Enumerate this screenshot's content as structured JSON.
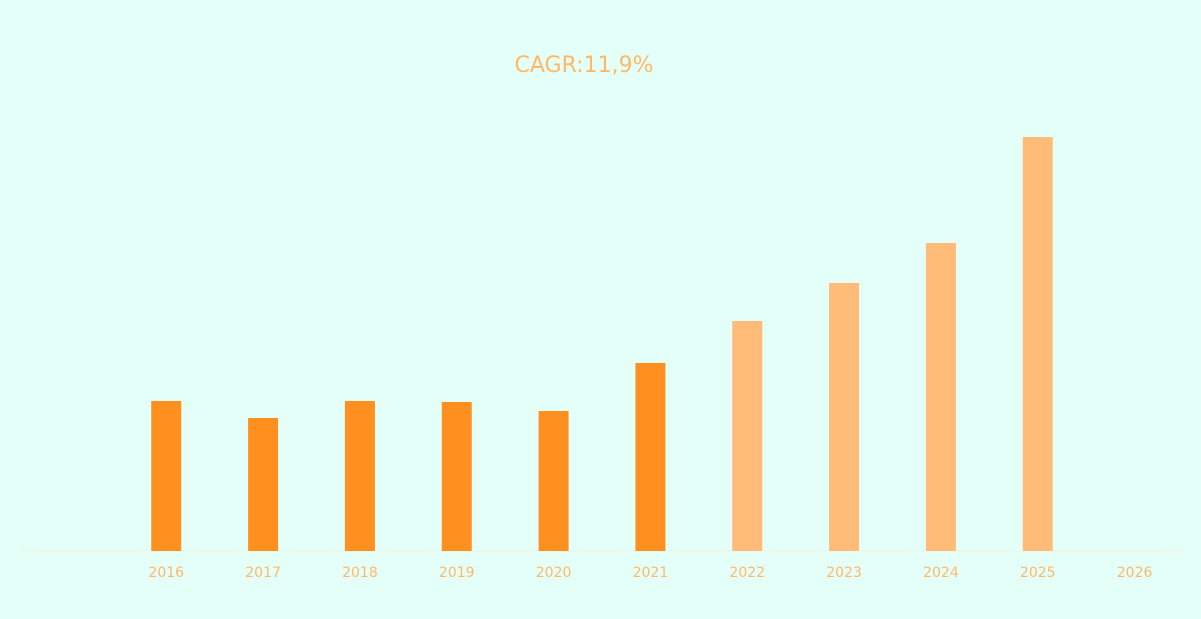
{
  "chart_data": {
    "type": "bar",
    "title": "CAGR:11,9%",
    "categories": [
      null,
      "2016",
      "2017",
      "2018",
      "2019",
      "2020",
      "2021",
      "2022",
      "2023",
      "2024",
      "2025",
      "2026"
    ],
    "values": [
      null,
      150,
      133,
      150,
      149,
      140,
      188,
      230,
      268,
      308,
      414,
      null
    ],
    "colors": [
      "#ff9020",
      "#ff9020",
      "#ff9020",
      "#ff9020",
      "#ff9020",
      "#ff9020",
      "#ff9020",
      "#ffbb77",
      "#ffbb77",
      "#ffbb77",
      "#ffbb77",
      "#ffbb77"
    ],
    "ylim": [
      0,
      450
    ]
  }
}
